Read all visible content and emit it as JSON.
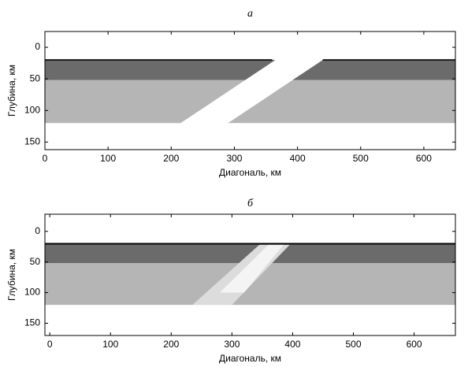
{
  "chart_data": [
    {
      "type": "image",
      "title": "а",
      "x_label": "Диагональ, км",
      "y_label": "Глубина, км",
      "xlim": [
        0,
        650
      ],
      "ylim": [
        -25,
        162
      ],
      "y_inverted": true,
      "xticks": [
        0,
        100,
        200,
        300,
        400,
        500,
        600
      ],
      "yticks": [
        0,
        50,
        100,
        150
      ],
      "regions": [
        {
          "color": "#6b6b6b",
          "x": [
            0,
            365,
            317,
            0
          ],
          "y": [
            20,
            20,
            52,
            52
          ]
        },
        {
          "color": "#b5b5b5",
          "x": [
            0,
            317,
            215,
            0
          ],
          "y": [
            52,
            52,
            120,
            120
          ]
        },
        {
          "color": "#6b6b6b",
          "x": [
            440,
            650,
            650,
            392
          ],
          "y": [
            20,
            20,
            52,
            52
          ]
        },
        {
          "color": "#b5b5b5",
          "x": [
            392,
            650,
            650,
            290
          ],
          "y": [
            52,
            52,
            120,
            120
          ]
        },
        {
          "color": "#000000",
          "x": [
            0,
            360,
            360,
            0
          ],
          "y": [
            19,
            19,
            21,
            21
          ]
        },
        {
          "color": "#000000",
          "x": [
            440,
            650,
            650,
            440
          ],
          "y": [
            19,
            19,
            21,
            21
          ]
        }
      ]
    },
    {
      "type": "image",
      "title": "б",
      "x_label": "Диагональ, км",
      "y_label": "Глубина, км",
      "xlim": [
        -8,
        668
      ],
      "ylim": [
        -28,
        170
      ],
      "y_inverted": true,
      "xticks": [
        0,
        100,
        200,
        300,
        400,
        500,
        600
      ],
      "yticks": [
        0,
        50,
        100,
        150
      ],
      "regions": [
        {
          "color": "#6b6b6b",
          "x": [
            -8,
            668,
            668,
            -8
          ],
          "y": [
            20,
            20,
            52,
            52
          ]
        },
        {
          "color": "#b5b5b5",
          "x": [
            -8,
            668,
            668,
            -8
          ],
          "y": [
            52,
            52,
            120,
            120
          ]
        },
        {
          "color": "#dcdcdc",
          "x": [
            345,
            395,
            300,
            235
          ],
          "y": [
            22,
            22,
            120,
            120
          ]
        },
        {
          "color": "#f4f4f4",
          "x": [
            360,
            385,
            320,
            280
          ],
          "y": [
            22,
            22,
            100,
            100
          ]
        },
        {
          "color": "#000000",
          "x": [
            -8,
            668,
            668,
            -8
          ],
          "y": [
            19,
            19,
            21.5,
            21.5
          ]
        }
      ]
    }
  ]
}
